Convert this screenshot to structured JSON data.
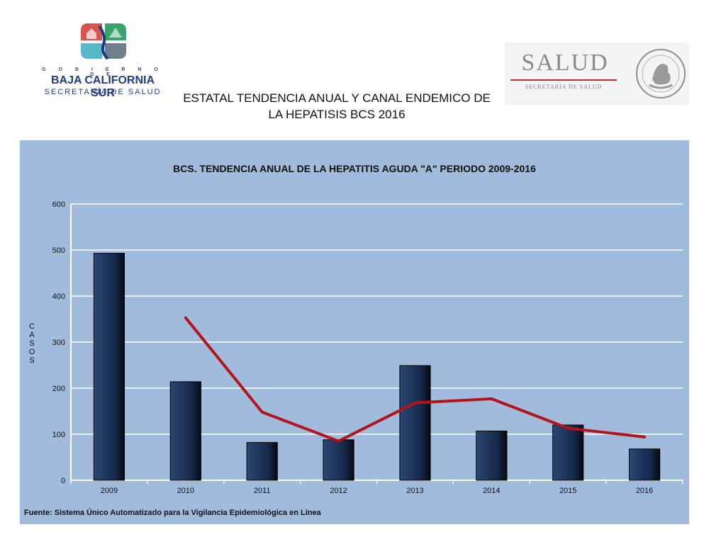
{
  "header": {
    "left_logo": {
      "gobierno": "G O B I E R N O  D E",
      "name": "BAJA CALIFORNIA SUR",
      "secretaria": "SECRETARÍA DE SALUD"
    },
    "right_logo": {
      "word": "SALUD",
      "secretaria": "SECRETARÍA DE SALUD",
      "seal_icon": "mexico-coat-of-arms-icon"
    },
    "title_line1": "ESTATAL TENDENCIA ANUAL Y CANAL ENDEMICO  DE",
    "title_line2": "LA HEPATISIS BCS 2016"
  },
  "chart_data": {
    "type": "bar",
    "title": "BCS. TENDENCIA ANUAL DE LA HEPATITIS AGUDA \"A\" PERIODO 2009-2016",
    "ylabel": "CASOS",
    "xlabel": "",
    "categories": [
      "2009",
      "2010",
      "2011",
      "2012",
      "2013",
      "2014",
      "2015",
      "2016"
    ],
    "ylim": [
      0,
      600
    ],
    "yticks": [
      0,
      100,
      200,
      300,
      400,
      500,
      600
    ],
    "grid": true,
    "legend": "none",
    "series": [
      {
        "type": "bar",
        "values": [
          493,
          214,
          82,
          88,
          249,
          107,
          120,
          68
        ],
        "color": "#1b2f52"
      },
      {
        "type": "line",
        "values": [
          null,
          353,
          148,
          85,
          168,
          177,
          113,
          94
        ],
        "color": "#b3141b"
      }
    ],
    "source": "Fuente: Sistema Único Automatizado para la Vigilancia Epidemiológica en Línea"
  }
}
